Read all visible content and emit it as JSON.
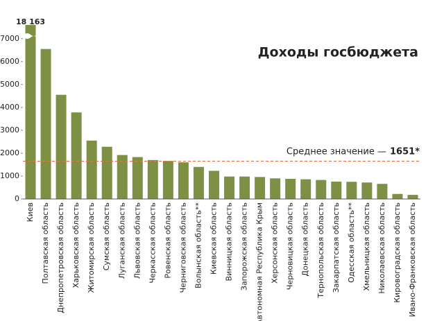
{
  "chart_data": {
    "type": "bar",
    "title": "Доходы госбюджета",
    "categories": [
      "Киев",
      "Полтавская область",
      "Днепропетровская область",
      "Харьковская область",
      "Житомирская область",
      "Сумская область",
      "Луганская область",
      "Львовская область",
      "Черкасская область",
      "Ровенская область",
      "Черниговская область",
      "Волынская область**",
      "Киевская область",
      "Винницкая область",
      "Запорожская область",
      "Автономная Республика Крым",
      "Херсонская область",
      "Черновицкая область",
      "Донецкая область",
      "Тернопольская область",
      "Закарпатская область",
      "Одесская область**",
      "Хмельницкая область",
      "Николаевская область",
      "Кировоградская область",
      "Ивано-Франковская область"
    ],
    "values": [
      18163,
      6550,
      4550,
      3780,
      2550,
      2280,
      1920,
      1830,
      1700,
      1660,
      1600,
      1400,
      1230,
      980,
      980,
      960,
      900,
      880,
      860,
      830,
      760,
      750,
      720,
      660,
      220,
      180
    ],
    "value_labels": [
      "18 163",
      null,
      null,
      null,
      null,
      null,
      null,
      null,
      null,
      null,
      null,
      null,
      null,
      null,
      null,
      null,
      null,
      null,
      null,
      null,
      null,
      null,
      null,
      null,
      null,
      null
    ],
    "color": "#7e9043",
    "ylim": [
      0,
      7600
    ],
    "yticks": [
      0,
      1000,
      2000,
      3000,
      4000,
      5000,
      6000,
      7000
    ],
    "grid": false,
    "average": {
      "label": "Среднее значение —",
      "value": 1651,
      "value_label": "1651*",
      "color": "#e8743b"
    }
  }
}
